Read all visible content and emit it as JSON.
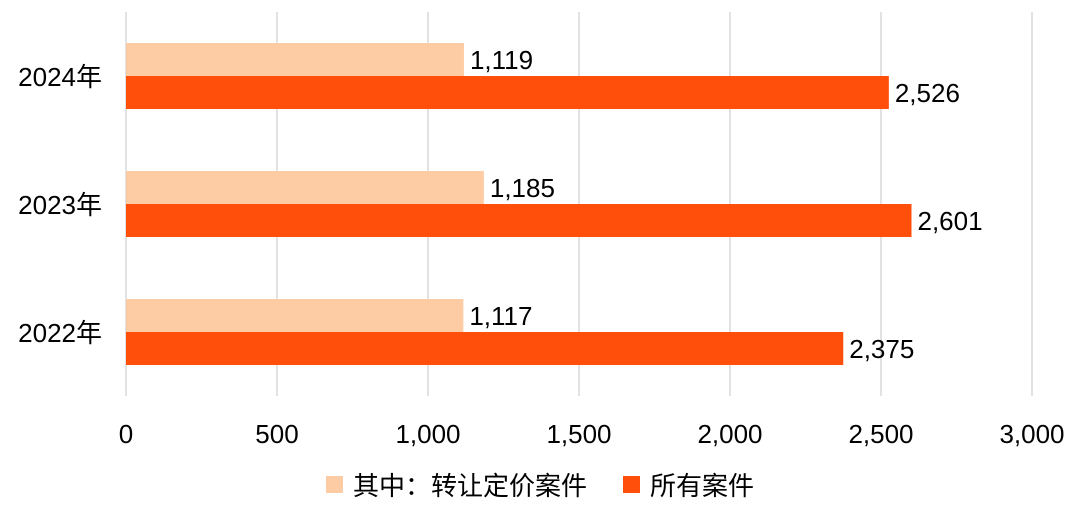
{
  "chart_data": {
    "type": "bar",
    "orientation": "horizontal",
    "categories": [
      "2024年",
      "2023年",
      "2022年"
    ],
    "series": [
      {
        "name": "其中：转让定价案件",
        "values": [
          1119,
          1185,
          1117
        ],
        "color": "#FDCBA4",
        "labels": [
          "1,119",
          "1,185",
          "1,117"
        ]
      },
      {
        "name": "所有案件",
        "values": [
          2526,
          2601,
          2375
        ],
        "color": "#FF4F0B",
        "labels": [
          "2,526",
          "2,601",
          "2,375"
        ]
      }
    ],
    "xlim": [
      0,
      3000
    ],
    "xticks": [
      0,
      500,
      1000,
      1500,
      2000,
      2500,
      3000
    ],
    "xtick_labels": [
      "0",
      "500",
      "1,000",
      "1,500",
      "2,000",
      "2,500",
      "3,000"
    ],
    "grid": true,
    "legend_position": "bottom",
    "title": "",
    "xlabel": "",
    "ylabel": ""
  }
}
